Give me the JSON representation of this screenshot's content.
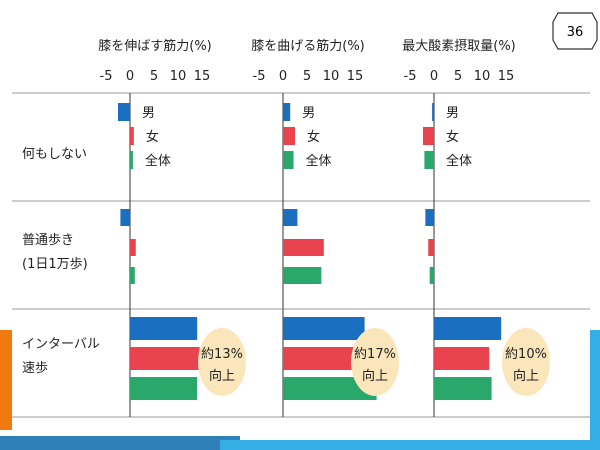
{
  "slide": {
    "page_number": "36",
    "colors": {
      "orange_accent": "#f07a10",
      "blue_band": "#2f7fb8",
      "light_blue_band": "#35aee6"
    }
  },
  "chart_data": {
    "type": "bar",
    "orientation": "horizontal",
    "title": "",
    "panels": [
      {
        "name": "膝を伸ばす筋力(%)",
        "ticks": [
          "-5",
          "0",
          "5",
          "10",
          "15"
        ],
        "xlim": [
          -5,
          15
        ]
      },
      {
        "name": "膝を曲げる筋力(%)",
        "ticks": [
          "-5",
          "0",
          "5",
          "10",
          "15"
        ],
        "xlim": [
          -5,
          15
        ]
      },
      {
        "name": "最大酸素摂取量(%)",
        "ticks": [
          "-5",
          "0",
          "5",
          "10",
          "15"
        ],
        "xlim": [
          -5,
          15
        ]
      }
    ],
    "groups": [
      {
        "label_lines": [
          "何もしない"
        ]
      },
      {
        "label_lines": [
          "普通歩き",
          "(1日1万歩)"
        ]
      },
      {
        "label_lines": [
          "インターバル",
          "速歩"
        ]
      }
    ],
    "series": [
      {
        "name": "男",
        "color": "#1a6fc0"
      },
      {
        "name": "女",
        "color": "#e8434e"
      },
      {
        "name": "全体",
        "color": "#2aa76a"
      }
    ],
    "values": [
      [
        [
          -2.5,
          0.8,
          0.6
        ],
        [
          -2.0,
          1.2,
          1.0
        ],
        [
          14.0,
          14.5,
          14.0
        ]
      ],
      [
        [
          1.5,
          2.5,
          2.2
        ],
        [
          3.0,
          8.5,
          8.0
        ],
        [
          17.0,
          20.0,
          19.5
        ]
      ],
      [
        [
          -0.4,
          -2.3,
          -2.0
        ],
        [
          -1.8,
          -1.2,
          -0.9
        ],
        [
          14.0,
          11.5,
          12.0
        ]
      ]
    ],
    "annotations": [
      {
        "panel": 0,
        "group": 2,
        "lines": [
          "約13%",
          "向上"
        ]
      },
      {
        "panel": 1,
        "group": 2,
        "lines": [
          "約17%",
          "向上"
        ]
      },
      {
        "panel": 2,
        "group": 2,
        "lines": [
          "約10%",
          "向上"
        ]
      }
    ],
    "legend_placement": "inline-first-group",
    "grid": false
  }
}
